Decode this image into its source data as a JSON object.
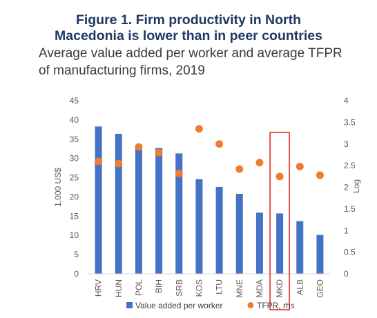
{
  "title_line1": "Figure 1. Firm productivity in North",
  "title_line2": "Macedonia is lower than in peer countries",
  "subtitle_line1": "Average value added per worker and average TFPR",
  "subtitle_line2": "of manufacturing firms, 2019",
  "chart_data": {
    "type": "bar",
    "categories": [
      "HRV",
      "HUN",
      "POL",
      "BIH",
      "SRB",
      "KOS",
      "LTU",
      "MNE",
      "MDA",
      "MKD",
      "ALB",
      "GEO"
    ],
    "series": [
      {
        "name": "Value added per worker",
        "type": "bar",
        "axis": "left",
        "color": "#4472c4",
        "values": [
          38.3,
          36.4,
          33.3,
          32.7,
          31.3,
          24.6,
          22.6,
          20.8,
          15.9,
          15.7,
          13.7,
          10.1
        ]
      },
      {
        "name": "TFPR, rhs",
        "type": "scatter",
        "axis": "right",
        "color": "#ed7d31",
        "values": [
          2.6,
          2.55,
          2.93,
          2.8,
          2.32,
          3.35,
          3.0,
          2.42,
          2.57,
          2.25,
          2.48,
          2.28
        ]
      }
    ],
    "ylabel": "1,000 US$",
    "ylim": [
      0,
      45
    ],
    "yticks": [
      "0",
      "5",
      "10",
      "15",
      "20",
      "25",
      "30",
      "35",
      "40",
      "45"
    ],
    "y2label": "Log",
    "y2lim": [
      0,
      4
    ],
    "y2ticks": [
      "0",
      "0.5",
      "1",
      "1.5",
      "2",
      "2.5",
      "3",
      "3.5",
      "4"
    ],
    "highlight_category": "MKD",
    "highlight_color": "#e02020",
    "grid": false,
    "legend_position": "bottom"
  }
}
